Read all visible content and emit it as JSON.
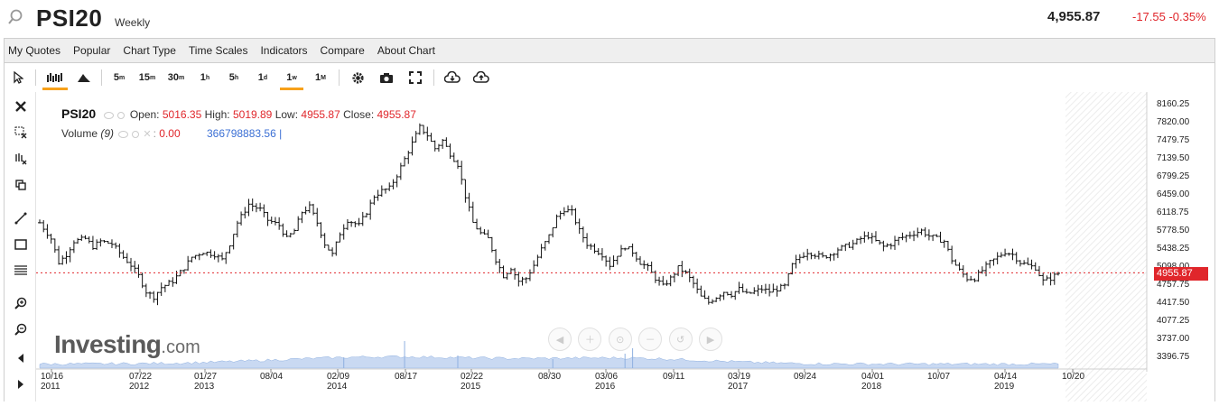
{
  "header": {
    "symbol": "PSI20",
    "period": "Weekly",
    "last": "4,955.87",
    "change": "-17.55 -0.35%"
  },
  "menu": [
    "My Quotes",
    "Popular",
    "Chart Type",
    "Time Scales",
    "Indicators",
    "Compare",
    "About Chart"
  ],
  "toolbar": {
    "timeframes": [
      {
        "label": "5",
        "sup": "m"
      },
      {
        "label": "15",
        "sup": "m"
      },
      {
        "label": "30",
        "sup": "m"
      },
      {
        "label": "1",
        "sup": "h"
      },
      {
        "label": "5",
        "sup": "h"
      },
      {
        "label": "1",
        "sup": "d"
      },
      {
        "label": "1",
        "sup": "w"
      },
      {
        "label": "1",
        "sup": "M"
      }
    ],
    "active_timeframe": "1w"
  },
  "legend": {
    "name": "PSI20",
    "open_label": "Open:",
    "open": "5016.35",
    "high_label": "High:",
    "high": "5019.89",
    "low_label": "Low:",
    "low": "4955.87",
    "close_label": "Close:",
    "close": "4955.87",
    "volume_label": "Volume",
    "volume_param": "(9)",
    "volume_ma": "0.00",
    "volume_value": "366798883.56 |"
  },
  "price_tag": "4955.87",
  "logo": {
    "main": "Investing",
    "suffix": ".com"
  },
  "colors": {
    "accent": "#f7a11a",
    "down": "#e0262b",
    "volume": "#3b6fd4",
    "candle": "#111111"
  },
  "chart_data": {
    "type": "ohlc",
    "interval": "weekly",
    "y_ticks": [
      8160.25,
      7820.0,
      7479.75,
      7139.5,
      6799.25,
      6459.0,
      6118.75,
      5778.5,
      5438.25,
      5098.0,
      4757.75,
      4417.5,
      4077.25,
      3737.0,
      3396.75
    ],
    "ylim": [
      3396.75,
      8160.25
    ],
    "x_ticks": [
      {
        "label": "10/16",
        "year": "2011"
      },
      {
        "label": "07/22",
        "year": "2012"
      },
      {
        "label": "01/27",
        "year": "2013"
      },
      {
        "label": "08/04",
        "year": ""
      },
      {
        "label": "02/09",
        "year": "2014"
      },
      {
        "label": "08/17",
        "year": ""
      },
      {
        "label": "02/22",
        "year": "2015"
      },
      {
        "label": "08/30",
        "year": ""
      },
      {
        "label": "03/06",
        "year": "2016"
      },
      {
        "label": "09/11",
        "year": ""
      },
      {
        "label": "03/19",
        "year": "2017"
      },
      {
        "label": "09/24",
        "year": ""
      },
      {
        "label": "04/01",
        "year": "2018"
      },
      {
        "label": "10/07",
        "year": ""
      },
      {
        "label": "04/14",
        "year": "2019"
      },
      {
        "label": "10/20",
        "year": ""
      }
    ],
    "current_price": 4955.87,
    "close_series": [
      [
        0,
        5900
      ],
      [
        3,
        5600
      ],
      [
        5,
        5150
      ],
      [
        7,
        5300
      ],
      [
        9,
        5550
      ],
      [
        12,
        5600
      ],
      [
        14,
        5450
      ],
      [
        16,
        5550
      ],
      [
        19,
        5500
      ],
      [
        22,
        5250
      ],
      [
        24,
        5100
      ],
      [
        26,
        4900
      ],
      [
        28,
        4600
      ],
      [
        30,
        4500
      ],
      [
        32,
        4680
      ],
      [
        35,
        4800
      ],
      [
        38,
        5050
      ],
      [
        40,
        5250
      ],
      [
        43,
        5350
      ],
      [
        46,
        5300
      ],
      [
        48,
        5200
      ],
      [
        50,
        5500
      ],
      [
        52,
        5900
      ],
      [
        55,
        6250
      ],
      [
        58,
        6150
      ],
      [
        60,
        5950
      ],
      [
        63,
        5850
      ],
      [
        65,
        5600
      ],
      [
        67,
        5750
      ],
      [
        69,
        6100
      ],
      [
        71,
        6200
      ],
      [
        73,
        5900
      ],
      [
        75,
        5500
      ],
      [
        77,
        5300
      ],
      [
        79,
        5700
      ],
      [
        81,
        5950
      ],
      [
        84,
        5850
      ],
      [
        86,
        6100
      ],
      [
        88,
        6400
      ],
      [
        90,
        6500
      ],
      [
        92,
        6550
      ],
      [
        94,
        6800
      ],
      [
        96,
        7100
      ],
      [
        98,
        7400
      ],
      [
        100,
        7700
      ],
      [
        102,
        7550
      ],
      [
        104,
        7300
      ],
      [
        106,
        7450
      ],
      [
        108,
        7200
      ],
      [
        110,
        7000
      ],
      [
        112,
        6400
      ],
      [
        114,
        5900
      ],
      [
        116,
        5700
      ],
      [
        118,
        5600
      ],
      [
        120,
        5200
      ],
      [
        122,
        4900
      ],
      [
        124,
        5050
      ],
      [
        126,
        4800
      ],
      [
        128,
        4850
      ],
      [
        130,
        5100
      ],
      [
        132,
        5400
      ],
      [
        134,
        5650
      ],
      [
        136,
        6000
      ],
      [
        138,
        6150
      ],
      [
        140,
        6100
      ],
      [
        142,
        5750
      ],
      [
        144,
        5500
      ],
      [
        146,
        5400
      ],
      [
        148,
        5300
      ],
      [
        150,
        5100
      ],
      [
        152,
        5300
      ],
      [
        154,
        5450
      ],
      [
        156,
        5350
      ],
      [
        158,
        5150
      ],
      [
        160,
        5050
      ],
      [
        162,
        4850
      ],
      [
        164,
        4700
      ],
      [
        166,
        4850
      ],
      [
        168,
        5050
      ],
      [
        170,
        4950
      ],
      [
        172,
        4750
      ],
      [
        174,
        4500
      ],
      [
        176,
        4400
      ],
      [
        178,
        4500
      ],
      [
        180,
        4600
      ],
      [
        182,
        4550
      ],
      [
        184,
        4650
      ],
      [
        186,
        4550
      ],
      [
        188,
        4600
      ],
      [
        190,
        4650
      ],
      [
        192,
        4600
      ],
      [
        194,
        4650
      ],
      [
        196,
        4700
      ],
      [
        198,
        5100
      ],
      [
        200,
        5250
      ],
      [
        202,
        5350
      ],
      [
        204,
        5300
      ],
      [
        206,
        5250
      ],
      [
        208,
        5300
      ],
      [
        210,
        5400
      ],
      [
        212,
        5450
      ],
      [
        214,
        5500
      ],
      [
        216,
        5600
      ],
      [
        218,
        5650
      ],
      [
        220,
        5550
      ],
      [
        222,
        5450
      ],
      [
        224,
        5500
      ],
      [
        226,
        5600
      ],
      [
        228,
        5650
      ],
      [
        230,
        5700
      ],
      [
        232,
        5750
      ],
      [
        234,
        5650
      ],
      [
        236,
        5600
      ],
      [
        238,
        5550
      ],
      [
        240,
        5200
      ],
      [
        242,
        5000
      ],
      [
        244,
        4850
      ],
      [
        246,
        4850
      ],
      [
        248,
        5000
      ],
      [
        250,
        5150
      ],
      [
        252,
        5250
      ],
      [
        254,
        5350
      ],
      [
        256,
        5300
      ],
      [
        258,
        5150
      ],
      [
        260,
        5100
      ],
      [
        262,
        5050
      ],
      [
        264,
        4800
      ],
      [
        266,
        4850
      ],
      [
        268,
        4950
      ]
    ],
    "volume_bar_count": 270
  }
}
